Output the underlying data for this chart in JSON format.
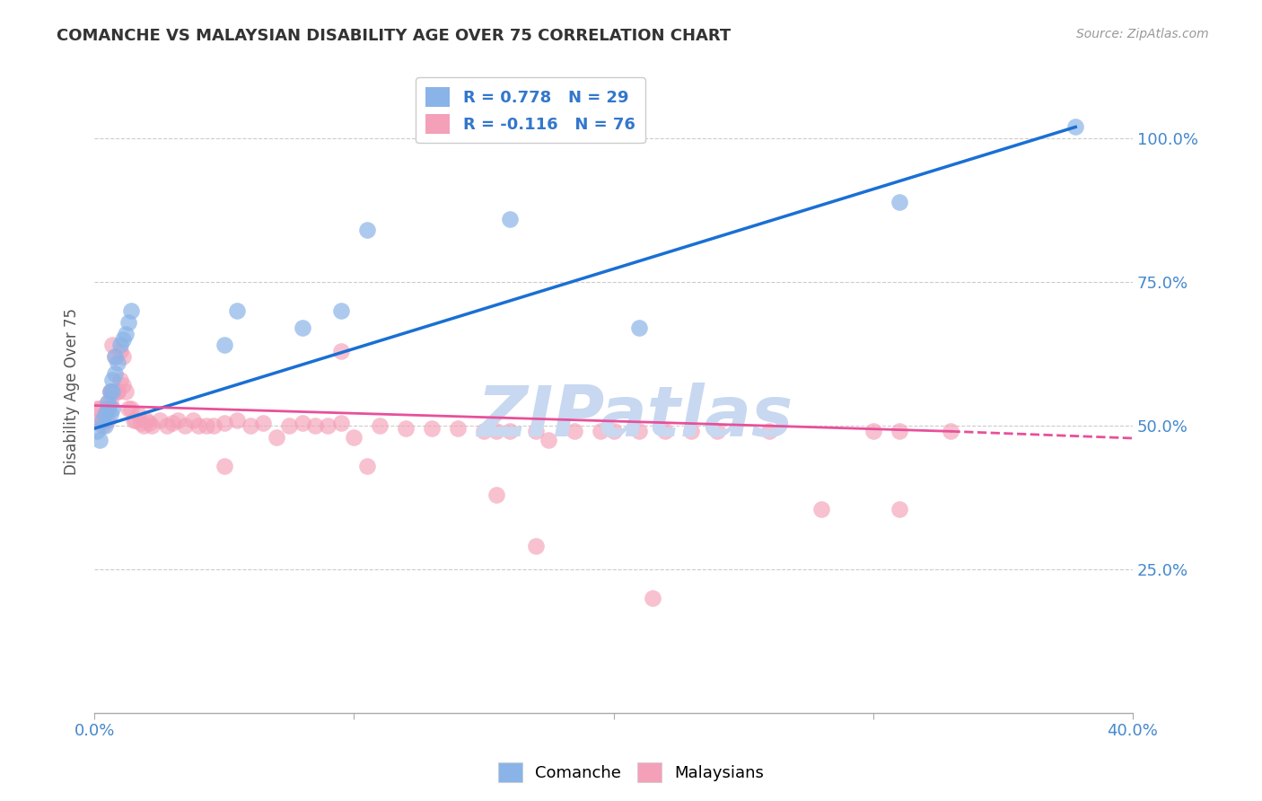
{
  "title": "COMANCHE VS MALAYSIAN DISABILITY AGE OVER 75 CORRELATION CHART",
  "source": "Source: ZipAtlas.com",
  "ylabel": "Disability Age Over 75",
  "xlim": [
    0.0,
    0.4
  ],
  "ylim": [
    0.0,
    1.12
  ],
  "ytick_labels": [
    "25.0%",
    "50.0%",
    "75.0%",
    "100.0%"
  ],
  "ytick_positions": [
    0.25,
    0.5,
    0.75,
    1.0
  ],
  "legend_line1": "R = 0.778   N = 29",
  "legend_line2": "R = -0.116   N = 76",
  "comanche_color": "#8ab4e8",
  "malaysian_color": "#f4a0b8",
  "trend_comanche_color": "#1a6fd4",
  "trend_malaysian_color": "#e8509a",
  "background_color": "#ffffff",
  "watermark": "ZIPatlas",
  "watermark_color": "#c8d8f0",
  "comanche_x": [
    0.001,
    0.002,
    0.003,
    0.004,
    0.004,
    0.005,
    0.005,
    0.006,
    0.006,
    0.007,
    0.007,
    0.007,
    0.008,
    0.008,
    0.009,
    0.01,
    0.011,
    0.012,
    0.013,
    0.014,
    0.05,
    0.055,
    0.08,
    0.095,
    0.105,
    0.16,
    0.21,
    0.31,
    0.378
  ],
  "comanche_y": [
    0.49,
    0.475,
    0.51,
    0.5,
    0.52,
    0.53,
    0.54,
    0.52,
    0.56,
    0.53,
    0.56,
    0.58,
    0.59,
    0.62,
    0.61,
    0.64,
    0.65,
    0.66,
    0.68,
    0.7,
    0.64,
    0.7,
    0.67,
    0.7,
    0.84,
    0.86,
    0.67,
    0.89,
    1.02
  ],
  "malaysian_x": [
    0.001,
    0.002,
    0.002,
    0.003,
    0.003,
    0.004,
    0.004,
    0.005,
    0.005,
    0.005,
    0.006,
    0.006,
    0.006,
    0.007,
    0.007,
    0.008,
    0.008,
    0.009,
    0.009,
    0.01,
    0.01,
    0.011,
    0.011,
    0.012,
    0.013,
    0.014,
    0.015,
    0.016,
    0.017,
    0.018,
    0.019,
    0.02,
    0.021,
    0.022,
    0.025,
    0.028,
    0.03,
    0.032,
    0.035,
    0.038,
    0.04,
    0.043,
    0.046,
    0.05,
    0.055,
    0.06,
    0.065,
    0.07,
    0.075,
    0.08,
    0.085,
    0.09,
    0.095,
    0.1,
    0.105,
    0.11,
    0.12,
    0.13,
    0.14,
    0.15,
    0.155,
    0.16,
    0.17,
    0.175,
    0.185,
    0.195,
    0.2,
    0.21,
    0.22,
    0.23,
    0.24,
    0.26,
    0.28,
    0.3,
    0.31,
    0.33
  ],
  "malaysian_y": [
    0.53,
    0.53,
    0.51,
    0.51,
    0.5,
    0.52,
    0.51,
    0.53,
    0.51,
    0.54,
    0.54,
    0.56,
    0.56,
    0.64,
    0.56,
    0.56,
    0.62,
    0.56,
    0.56,
    0.63,
    0.58,
    0.62,
    0.57,
    0.56,
    0.53,
    0.53,
    0.51,
    0.51,
    0.52,
    0.505,
    0.5,
    0.51,
    0.505,
    0.5,
    0.51,
    0.5,
    0.505,
    0.51,
    0.5,
    0.51,
    0.5,
    0.5,
    0.5,
    0.505,
    0.51,
    0.5,
    0.505,
    0.48,
    0.5,
    0.505,
    0.5,
    0.5,
    0.505,
    0.48,
    0.43,
    0.5,
    0.495,
    0.495,
    0.495,
    0.49,
    0.49,
    0.49,
    0.49,
    0.475,
    0.49,
    0.49,
    0.49,
    0.49,
    0.49,
    0.49,
    0.49,
    0.49,
    0.355,
    0.49,
    0.49,
    0.49
  ],
  "malaysian_outliers_x": [
    0.05,
    0.095,
    0.155,
    0.17,
    0.215,
    0.31
  ],
  "malaysian_outliers_y": [
    0.43,
    0.63,
    0.38,
    0.29,
    0.2,
    0.355
  ],
  "trend_blue_x0": 0.0,
  "trend_blue_y0": 0.495,
  "trend_blue_x1": 0.378,
  "trend_blue_y1": 1.02,
  "trend_pink_x0": 0.0,
  "trend_pink_y0": 0.535,
  "trend_pink_x1": 0.33,
  "trend_pink_y1": 0.49,
  "trend_pink_dash_x1": 0.4,
  "trend_pink_dash_y1": 0.478
}
